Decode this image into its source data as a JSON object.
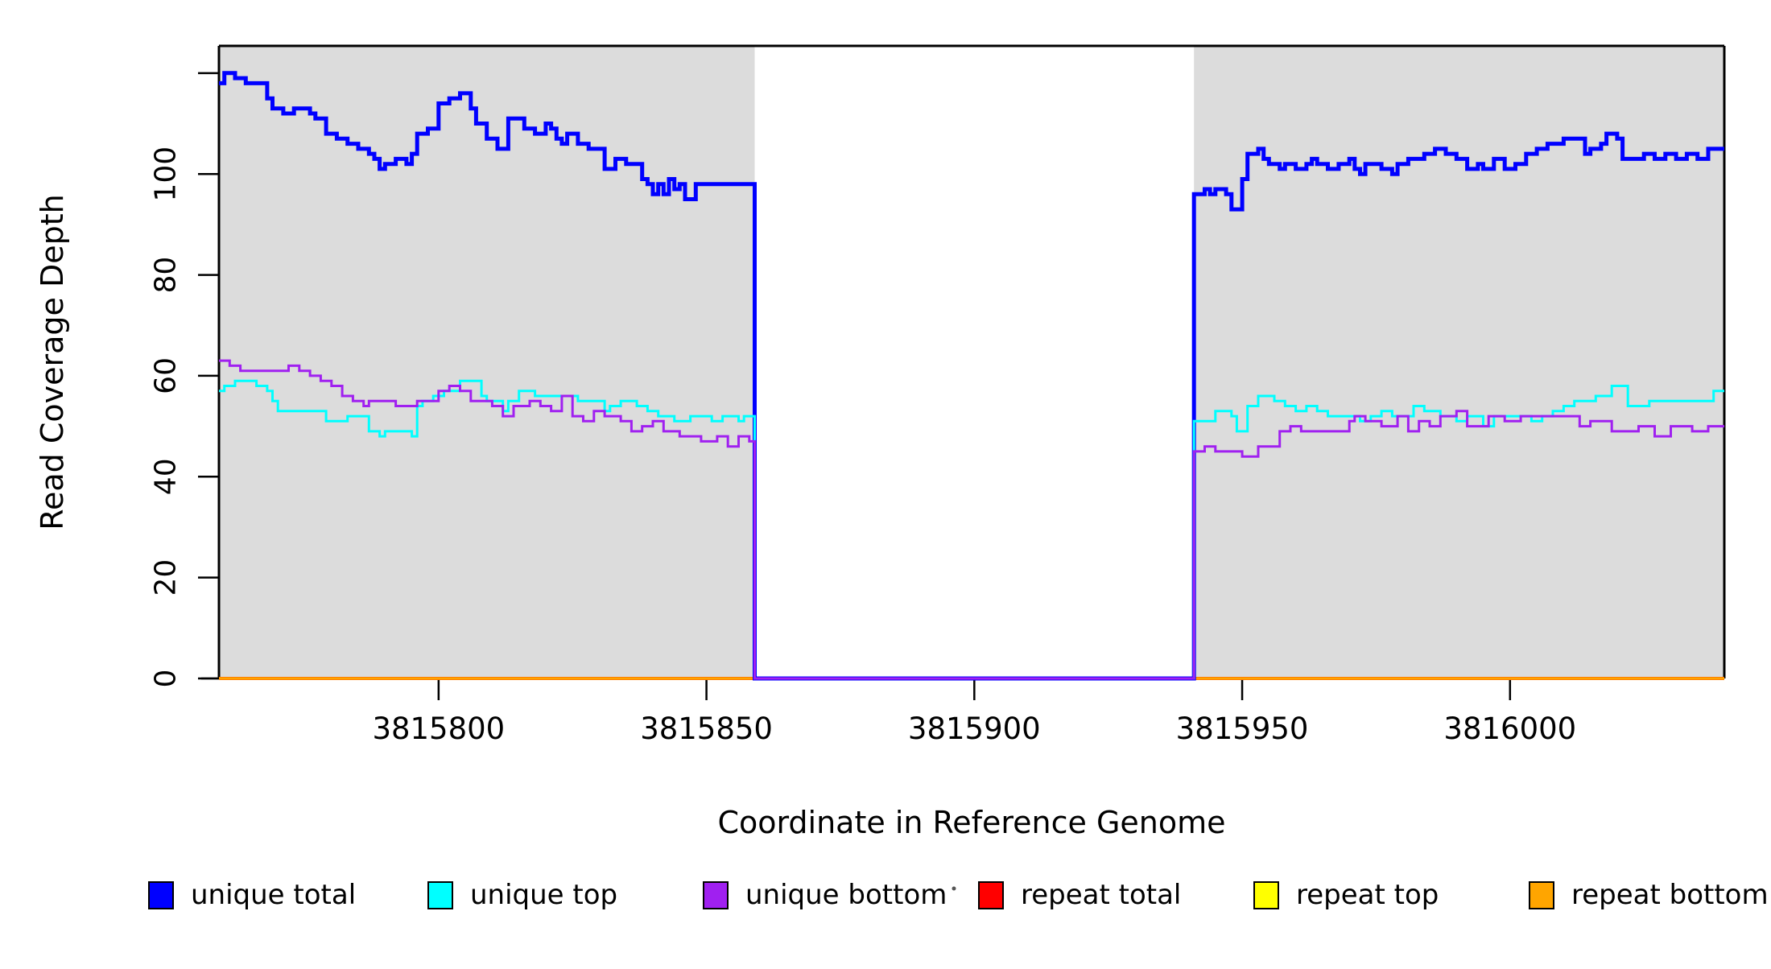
{
  "figure": {
    "background": "#ffffff",
    "shaded_region_color": "#dcdcdc",
    "frame_color": "#000000"
  },
  "chart_data": {
    "type": "line",
    "subtype": "step-coverage",
    "title": "",
    "xlabel": "Coordinate in Reference Genome",
    "ylabel": "Read Coverage Depth",
    "xlim": [
      3815759,
      3816040
    ],
    "ylim": [
      0,
      125.4
    ],
    "grid": false,
    "legend_position": "bottom-horizontal",
    "x_ticks": [
      {
        "v": 3815800,
        "label": "3815800"
      },
      {
        "v": 3815850,
        "label": "3815850"
      },
      {
        "v": 3815900,
        "label": "3815900"
      },
      {
        "v": 3815950,
        "label": "3815950"
      },
      {
        "v": 3816000,
        "label": "3816000"
      }
    ],
    "y_ticks": [
      {
        "v": 0,
        "label": "0"
      },
      {
        "v": 20,
        "label": "20"
      },
      {
        "v": 40,
        "label": "40"
      },
      {
        "v": 60,
        "label": "60"
      },
      {
        "v": 80,
        "label": "80"
      },
      {
        "v": 100,
        "label": "100"
      },
      {
        "v": 120,
        "label": ""
      }
    ],
    "shaded_regions": [
      [
        3815759,
        3815859
      ],
      [
        3815941,
        3816040
      ]
    ],
    "coverage_gap": [
      3815859,
      3815941
    ],
    "series": [
      {
        "name": "repeat total",
        "color": "#ff0000",
        "width": 4,
        "points": [
          [
            3815759,
            0
          ],
          [
            3816040,
            0
          ]
        ]
      },
      {
        "name": "repeat top",
        "color": "#ffff00",
        "width": 2.5,
        "points": [
          [
            3815759,
            0
          ],
          [
            3816040,
            0
          ]
        ]
      },
      {
        "name": "repeat bottom",
        "color": "#ffa500",
        "width": 3.5,
        "points": [
          [
            3815759,
            0
          ],
          [
            3816040,
            0
          ]
        ]
      },
      {
        "name": "unique total",
        "color": "#0000ff",
        "width": 5,
        "points": [
          [
            3815759,
            118
          ],
          [
            3815760,
            120
          ],
          [
            3815762,
            119
          ],
          [
            3815764,
            118
          ],
          [
            3815768,
            115
          ],
          [
            3815769,
            113
          ],
          [
            3815771,
            112
          ],
          [
            3815773,
            113
          ],
          [
            3815776,
            112
          ],
          [
            3815777,
            111
          ],
          [
            3815779,
            108
          ],
          [
            3815781,
            107
          ],
          [
            3815783,
            106
          ],
          [
            3815785,
            105
          ],
          [
            3815787,
            104
          ],
          [
            3815788,
            103
          ],
          [
            3815789,
            101
          ],
          [
            3815790,
            102
          ],
          [
            3815792,
            103
          ],
          [
            3815794,
            102
          ],
          [
            3815795,
            104
          ],
          [
            3815796,
            108
          ],
          [
            3815798,
            109
          ],
          [
            3815800,
            114
          ],
          [
            3815802,
            115
          ],
          [
            3815804,
            116
          ],
          [
            3815806,
            113
          ],
          [
            3815807,
            110
          ],
          [
            3815809,
            107
          ],
          [
            3815811,
            105
          ],
          [
            3815813,
            111
          ],
          [
            3815816,
            109
          ],
          [
            3815818,
            108
          ],
          [
            3815820,
            110
          ],
          [
            3815821,
            109
          ],
          [
            3815822,
            107
          ],
          [
            3815823,
            106
          ],
          [
            3815824,
            108
          ],
          [
            3815826,
            106
          ],
          [
            3815828,
            105
          ],
          [
            3815831,
            101
          ],
          [
            3815833,
            103
          ],
          [
            3815835,
            102
          ],
          [
            3815838,
            99
          ],
          [
            3815839,
            98
          ],
          [
            3815840,
            96
          ],
          [
            3815841,
            98
          ],
          [
            3815842,
            96
          ],
          [
            3815843,
            99
          ],
          [
            3815844,
            97
          ],
          [
            3815845,
            98
          ],
          [
            3815846,
            95
          ],
          [
            3815848,
            98
          ],
          [
            3815859,
            0
          ],
          [
            3815941,
            96
          ],
          [
            3815943,
            97
          ],
          [
            3815944,
            96
          ],
          [
            3815945,
            97
          ],
          [
            3815947,
            96
          ],
          [
            3815948,
            93
          ],
          [
            3815950,
            99
          ],
          [
            3815951,
            104
          ],
          [
            3815953,
            105
          ],
          [
            3815954,
            103
          ],
          [
            3815955,
            102
          ],
          [
            3815957,
            101
          ],
          [
            3815958,
            102
          ],
          [
            3815960,
            101
          ],
          [
            3815962,
            102
          ],
          [
            3815963,
            103
          ],
          [
            3815964,
            102
          ],
          [
            3815966,
            101
          ],
          [
            3815968,
            102
          ],
          [
            3815970,
            103
          ],
          [
            3815971,
            101
          ],
          [
            3815972,
            100
          ],
          [
            3815973,
            102
          ],
          [
            3815976,
            101
          ],
          [
            3815978,
            100
          ],
          [
            3815979,
            102
          ],
          [
            3815981,
            103
          ],
          [
            3815984,
            104
          ],
          [
            3815986,
            105
          ],
          [
            3815988,
            104
          ],
          [
            3815990,
            103
          ],
          [
            3815992,
            101
          ],
          [
            3815994,
            102
          ],
          [
            3815995,
            101
          ],
          [
            3815997,
            103
          ],
          [
            3815999,
            101
          ],
          [
            3816001,
            102
          ],
          [
            3816003,
            104
          ],
          [
            3816005,
            105
          ],
          [
            3816007,
            106
          ],
          [
            3816010,
            107
          ],
          [
            3816014,
            104
          ],
          [
            3816015,
            105
          ],
          [
            3816017,
            106
          ],
          [
            3816018,
            108
          ],
          [
            3816020,
            107
          ],
          [
            3816021,
            103
          ],
          [
            3816025,
            104
          ],
          [
            3816027,
            103
          ],
          [
            3816029,
            104
          ],
          [
            3816031,
            103
          ],
          [
            3816033,
            104
          ],
          [
            3816035,
            103
          ],
          [
            3816037,
            105
          ],
          [
            3816040,
            105
          ]
        ]
      },
      {
        "name": "unique top",
        "color": "#00ffff",
        "width": 3,
        "points": [
          [
            3815759,
            57
          ],
          [
            3815760,
            58
          ],
          [
            3815762,
            59
          ],
          [
            3815766,
            58
          ],
          [
            3815768,
            57
          ],
          [
            3815769,
            55
          ],
          [
            3815770,
            53
          ],
          [
            3815779,
            51
          ],
          [
            3815783,
            52
          ],
          [
            3815787,
            49
          ],
          [
            3815789,
            48
          ],
          [
            3815790,
            49
          ],
          [
            3815795,
            48
          ],
          [
            3815796,
            54
          ],
          [
            3815797,
            55
          ],
          [
            3815799,
            56
          ],
          [
            3815801,
            57
          ],
          [
            3815804,
            59
          ],
          [
            3815808,
            56
          ],
          [
            3815809,
            55
          ],
          [
            3815812,
            53
          ],
          [
            3815813,
            55
          ],
          [
            3815815,
            57
          ],
          [
            3815818,
            56
          ],
          [
            3815824,
            56
          ],
          [
            3815826,
            55
          ],
          [
            3815831,
            53
          ],
          [
            3815832,
            54
          ],
          [
            3815834,
            55
          ],
          [
            3815837,
            54
          ],
          [
            3815839,
            53
          ],
          [
            3815841,
            52
          ],
          [
            3815844,
            51
          ],
          [
            3815847,
            52
          ],
          [
            3815851,
            51
          ],
          [
            3815853,
            52
          ],
          [
            3815856,
            51
          ],
          [
            3815857,
            52
          ],
          [
            3815859,
            0
          ],
          [
            3815941,
            51
          ],
          [
            3815945,
            53
          ],
          [
            3815948,
            52
          ],
          [
            3815949,
            49
          ],
          [
            3815951,
            54
          ],
          [
            3815953,
            56
          ],
          [
            3815956,
            55
          ],
          [
            3815958,
            54
          ],
          [
            3815960,
            53
          ],
          [
            3815962,
            54
          ],
          [
            3815964,
            53
          ],
          [
            3815966,
            52
          ],
          [
            3815972,
            51
          ],
          [
            3815974,
            52
          ],
          [
            3815976,
            53
          ],
          [
            3815978,
            52
          ],
          [
            3815982,
            54
          ],
          [
            3815984,
            53
          ],
          [
            3815987,
            52
          ],
          [
            3815990,
            51
          ],
          [
            3815992,
            52
          ],
          [
            3815995,
            50
          ],
          [
            3815997,
            52
          ],
          [
            3816004,
            51
          ],
          [
            3816006,
            52
          ],
          [
            3816008,
            53
          ],
          [
            3816010,
            54
          ],
          [
            3816012,
            55
          ],
          [
            3816016,
            56
          ],
          [
            3816019,
            58
          ],
          [
            3816022,
            54
          ],
          [
            3816026,
            55
          ],
          [
            3816030,
            55
          ],
          [
            3816034,
            55
          ],
          [
            3816038,
            57
          ],
          [
            3816040,
            57
          ]
        ]
      },
      {
        "name": "unique bottom",
        "color": "#a020f0",
        "width": 3,
        "points": [
          [
            3815759,
            63
          ],
          [
            3815761,
            62
          ],
          [
            3815763,
            61
          ],
          [
            3815772,
            62
          ],
          [
            3815774,
            61
          ],
          [
            3815776,
            60
          ],
          [
            3815778,
            59
          ],
          [
            3815780,
            58
          ],
          [
            3815782,
            56
          ],
          [
            3815784,
            55
          ],
          [
            3815786,
            54
          ],
          [
            3815787,
            55
          ],
          [
            3815790,
            55
          ],
          [
            3815792,
            54
          ],
          [
            3815796,
            55
          ],
          [
            3815800,
            57
          ],
          [
            3815802,
            58
          ],
          [
            3815804,
            57
          ],
          [
            3815806,
            55
          ],
          [
            3815810,
            54
          ],
          [
            3815812,
            52
          ],
          [
            3815814,
            54
          ],
          [
            3815817,
            55
          ],
          [
            3815819,
            54
          ],
          [
            3815821,
            53
          ],
          [
            3815823,
            56
          ],
          [
            3815825,
            52
          ],
          [
            3815827,
            51
          ],
          [
            3815829,
            53
          ],
          [
            3815831,
            52
          ],
          [
            3815834,
            51
          ],
          [
            3815836,
            49
          ],
          [
            3815838,
            50
          ],
          [
            3815840,
            51
          ],
          [
            3815842,
            49
          ],
          [
            3815845,
            48
          ],
          [
            3815849,
            47
          ],
          [
            3815852,
            48
          ],
          [
            3815854,
            46
          ],
          [
            3815856,
            48
          ],
          [
            3815858,
            47
          ],
          [
            3815859,
            0
          ],
          [
            3815941,
            45
          ],
          [
            3815943,
            46
          ],
          [
            3815945,
            45
          ],
          [
            3815950,
            44
          ],
          [
            3815953,
            46
          ],
          [
            3815957,
            49
          ],
          [
            3815959,
            50
          ],
          [
            3815961,
            49
          ],
          [
            3815968,
            49
          ],
          [
            3815970,
            51
          ],
          [
            3815971,
            52
          ],
          [
            3815973,
            51
          ],
          [
            3815976,
            50
          ],
          [
            3815979,
            52
          ],
          [
            3815981,
            49
          ],
          [
            3815983,
            51
          ],
          [
            3815985,
            50
          ],
          [
            3815987,
            52
          ],
          [
            3815990,
            53
          ],
          [
            3815992,
            50
          ],
          [
            3815996,
            52
          ],
          [
            3815999,
            51
          ],
          [
            3816002,
            52
          ],
          [
            3816007,
            52
          ],
          [
            3816013,
            50
          ],
          [
            3816015,
            51
          ],
          [
            3816019,
            49
          ],
          [
            3816024,
            50
          ],
          [
            3816027,
            48
          ],
          [
            3816030,
            50
          ],
          [
            3816034,
            49
          ],
          [
            3816037,
            50
          ],
          [
            3816040,
            50
          ]
        ]
      }
    ]
  },
  "legend": {
    "items": [
      {
        "label": "unique total",
        "color": "#0000ff"
      },
      {
        "label": "unique top",
        "color": "#00ffff"
      },
      {
        "label": "unique bottom",
        "color": "#a020f0"
      },
      {
        "label": "repeat total",
        "color": "#ff0000"
      },
      {
        "label": "repeat top",
        "color": "#ffff00"
      },
      {
        "label": "repeat bottom",
        "color": "#ffa500"
      }
    ],
    "stray_mark": true
  }
}
